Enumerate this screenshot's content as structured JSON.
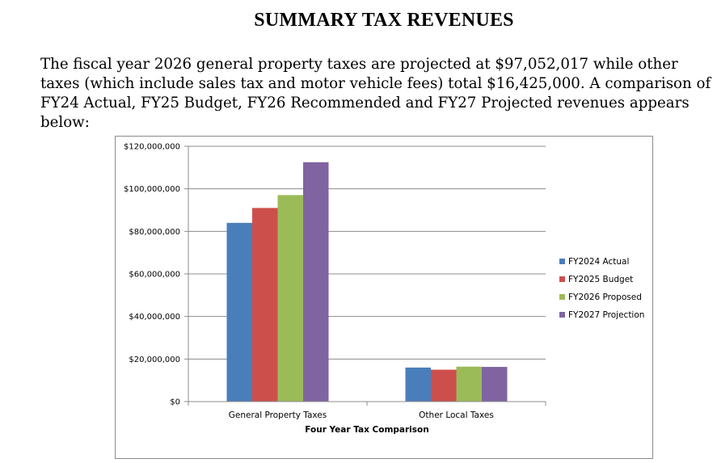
{
  "page": {
    "title": "SUMMARY TAX REVENUES",
    "intro": "The fiscal year 2026 general property taxes are projected at $97,052,017 while other taxes (which include sales tax and motor vehicle fees) total $16,425,000. A comparison of FY24 Actual, FY25 Budget, FY26 Recommended and FY27 Projected revenues appears below:"
  },
  "colors": {
    "fy2024": "#4a7ebb",
    "fy2025": "#cd4f4c",
    "fy2026": "#9bbb59",
    "fy2027": "#8064a2",
    "gridline": "#8c8c8c"
  },
  "chart_data": {
    "type": "bar",
    "title": "",
    "xlabel": "Four Year Tax Comparison",
    "ylabel": "",
    "ylim": [
      0,
      120000000
    ],
    "yticks": [
      0,
      20000000,
      40000000,
      60000000,
      80000000,
      100000000,
      120000000
    ],
    "ytick_labels": [
      "$0",
      "$20,000,000",
      "$40,000,000",
      "$60,000,000",
      "$80,000,000",
      "$100,000,000",
      "$120,000,000"
    ],
    "grid": true,
    "legend_position": "right",
    "categories": [
      "General Property Taxes",
      "Other Local Taxes"
    ],
    "series": [
      {
        "name": "FY2024 Actual",
        "color_key": "fy2024",
        "values": [
          84000000,
          16000000
        ]
      },
      {
        "name": "FY2025 Budget",
        "color_key": "fy2025",
        "values": [
          91000000,
          15000000
        ]
      },
      {
        "name": "FY2026 Proposed",
        "color_key": "fy2026",
        "values": [
          97052017,
          16425000
        ]
      },
      {
        "name": "FY2027 Projection",
        "color_key": "fy2027",
        "values": [
          112500000,
          16300000
        ]
      }
    ]
  }
}
